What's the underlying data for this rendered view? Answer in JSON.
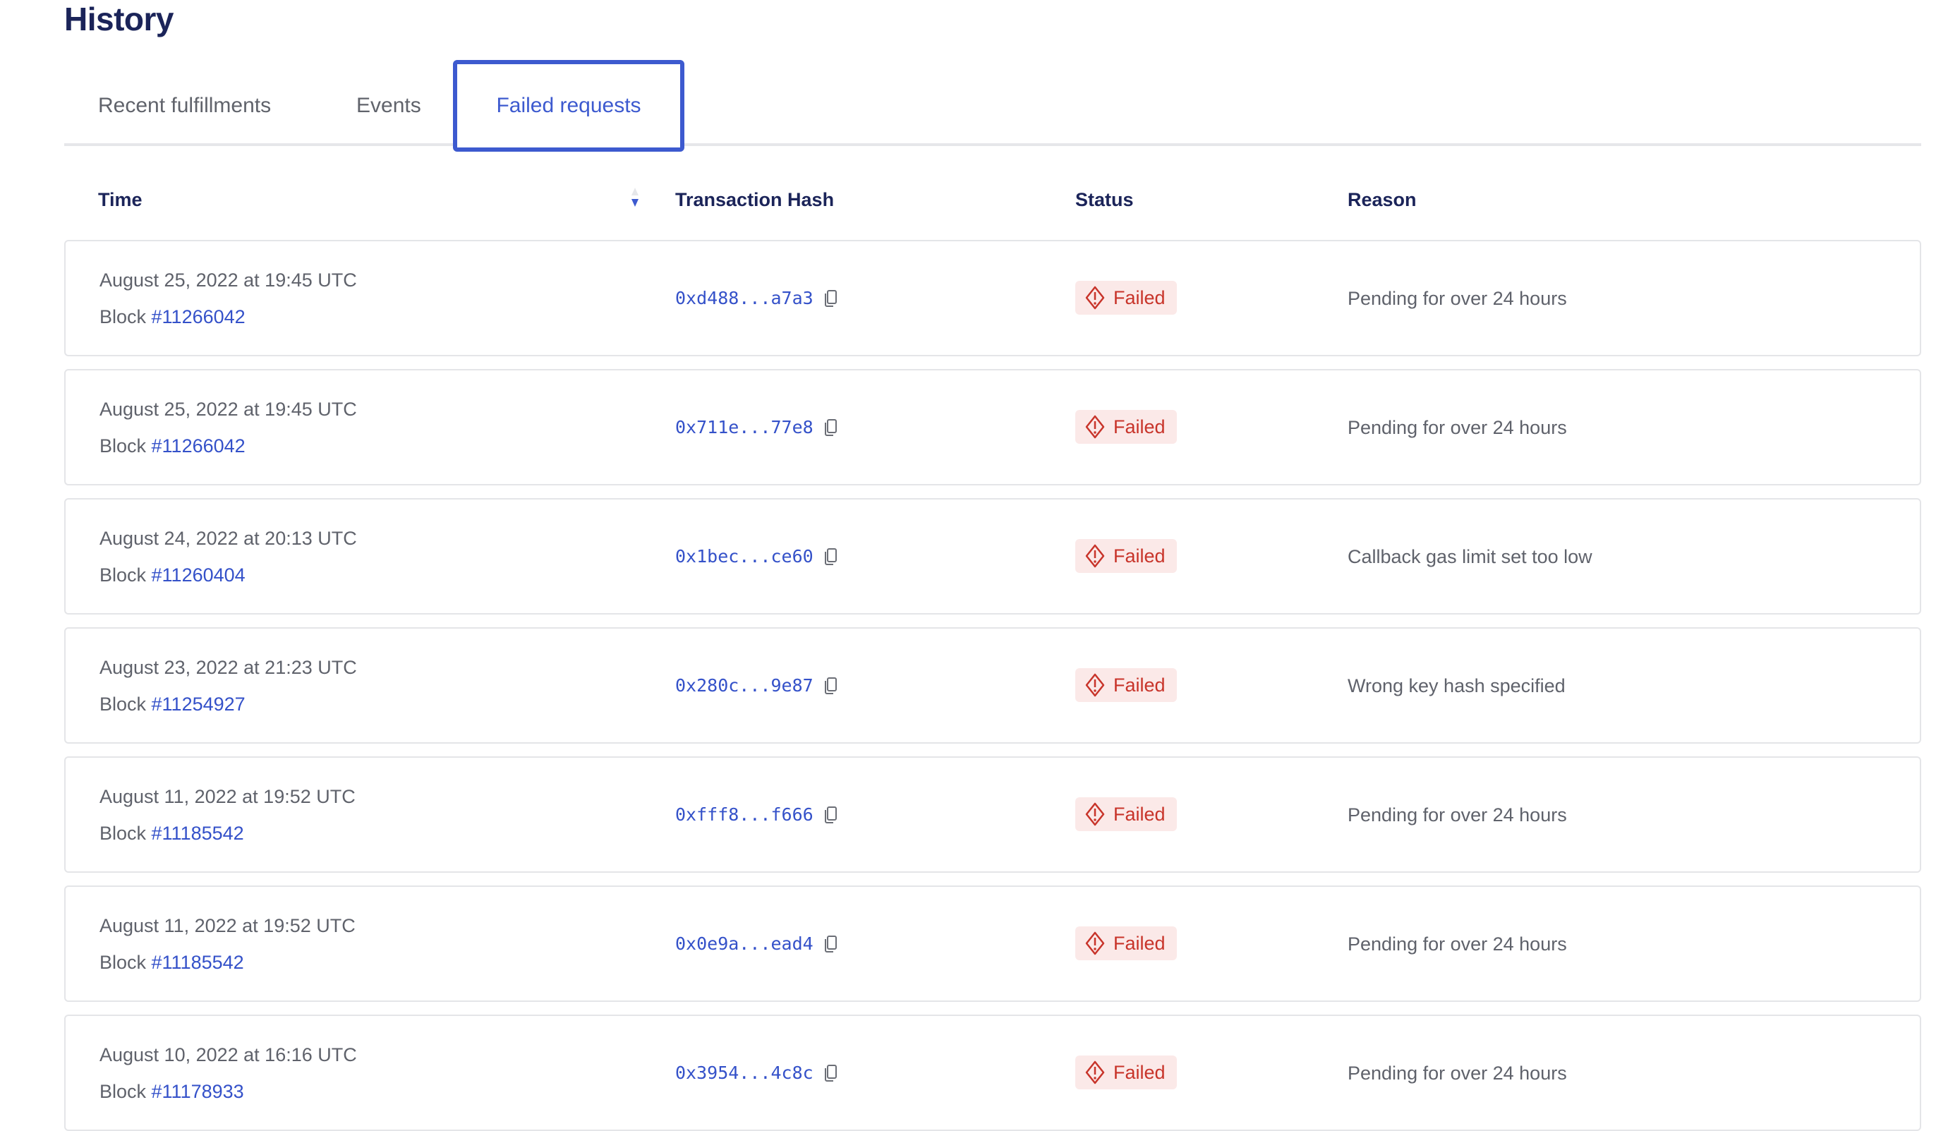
{
  "page": {
    "title": "History"
  },
  "tabs": [
    {
      "label": "Recent fulfillments",
      "active": false
    },
    {
      "label": "Events",
      "active": false
    },
    {
      "label": "Failed requests",
      "active": true
    }
  ],
  "table": {
    "headers": {
      "time": "Time",
      "hash": "Transaction Hash",
      "status": "Status",
      "reason": "Reason"
    },
    "sort": {
      "column": "Time",
      "direction": "descending"
    },
    "block_prefix": "Block ",
    "rows": [
      {
        "date": "August 25, 2022 at 19:45 UTC",
        "block": "#11266042",
        "hash": "0xd488...a7a3",
        "status": "Failed",
        "reason": "Pending for over 24 hours"
      },
      {
        "date": "August 25, 2022 at 19:45 UTC",
        "block": "#11266042",
        "hash": "0x711e...77e8",
        "status": "Failed",
        "reason": "Pending for over 24 hours"
      },
      {
        "date": "August 24, 2022 at 20:13 UTC",
        "block": "#11260404",
        "hash": "0x1bec...ce60",
        "status": "Failed",
        "reason": "Callback gas limit set too low"
      },
      {
        "date": "August 23, 2022 at 21:23 UTC",
        "block": "#11254927",
        "hash": "0x280c...9e87",
        "status": "Failed",
        "reason": "Wrong key hash specified"
      },
      {
        "date": "August 11, 2022 at 19:52 UTC",
        "block": "#11185542",
        "hash": "0xfff8...f666",
        "status": "Failed",
        "reason": "Pending for over 24 hours"
      },
      {
        "date": "August 11, 2022 at 19:52 UTC",
        "block": "#11185542",
        "hash": "0x0e9a...ead4",
        "status": "Failed",
        "reason": "Pending for over 24 hours"
      },
      {
        "date": "August 10, 2022 at 16:16 UTC",
        "block": "#11178933",
        "hash": "0x3954...4c8c",
        "status": "Failed",
        "reason": "Pending for over 24 hours"
      }
    ]
  },
  "colors": {
    "accent": "#3d5acf",
    "link": "#3451c9",
    "heading": "#1b2459",
    "failed_text": "#c8342a",
    "failed_bg": "#fbe9e8"
  },
  "icons": {
    "copy": "copy-icon",
    "failed": "warning-diamond-icon",
    "sort": "sort-arrows-icon"
  }
}
